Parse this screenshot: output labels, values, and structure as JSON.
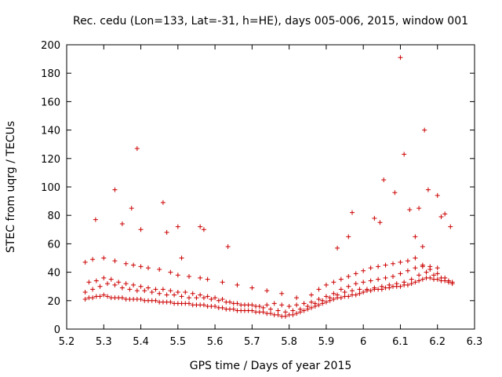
{
  "chart_data": {
    "type": "scatter",
    "title": "Rec. cedu (Lon=133, Lat=-31, h=HE), days 005-006, 2015, window 001",
    "xlabel": "GPS time / Days of year 2015",
    "ylabel": "STEC from uqrg / TECUs",
    "xlim": [
      5.2,
      6.3
    ],
    "ylim": [
      0,
      200
    ],
    "xticks": [
      5.2,
      5.3,
      5.4,
      5.5,
      5.6,
      5.7,
      5.8,
      5.9,
      6.0,
      6.1,
      6.2,
      6.3
    ],
    "xtick_labels": [
      "5.2",
      "5.3",
      "5.4",
      "5.5",
      "5.6",
      "5.7",
      "5.8",
      "5.9",
      "6",
      "6.1",
      "6.2",
      "6.3"
    ],
    "yticks": [
      0,
      20,
      40,
      60,
      80,
      100,
      120,
      140,
      160,
      180,
      200
    ],
    "ytick_labels": [
      "0",
      "20",
      "40",
      "60",
      "80",
      "100",
      "120",
      "140",
      "160",
      "180",
      "200"
    ],
    "marker": "+",
    "color": "#cc0000",
    "series": [
      {
        "name": "STEC",
        "x": [
          5.25,
          5.26,
          5.27,
          5.28,
          5.29,
          5.3,
          5.31,
          5.32,
          5.33,
          5.34,
          5.35,
          5.36,
          5.37,
          5.38,
          5.39,
          5.4,
          5.41,
          5.42,
          5.43,
          5.44,
          5.45,
          5.46,
          5.47,
          5.48,
          5.49,
          5.5,
          5.51,
          5.52,
          5.53,
          5.54,
          5.55,
          5.56,
          5.57,
          5.58,
          5.59,
          5.6,
          5.61,
          5.62,
          5.63,
          5.64,
          5.65,
          5.66,
          5.67,
          5.68,
          5.69,
          5.7,
          5.71,
          5.72,
          5.73,
          5.74,
          5.75,
          5.76,
          5.77,
          5.78,
          5.79,
          5.8,
          5.81,
          5.82,
          5.83,
          5.84,
          5.85,
          5.86,
          5.87,
          5.88,
          5.89,
          5.9,
          5.91,
          5.92,
          5.93,
          5.94,
          5.95,
          5.96,
          5.97,
          5.98,
          5.99,
          6.0,
          6.01,
          6.02,
          6.03,
          6.04,
          6.05,
          6.06,
          6.07,
          6.08,
          6.09,
          6.1,
          6.11,
          6.12,
          6.13,
          6.14,
          6.15,
          6.16,
          6.17,
          6.18,
          6.19,
          6.2,
          6.21,
          6.22,
          6.23,
          6.24,
          5.25,
          5.27,
          5.29,
          5.31,
          5.33,
          5.35,
          5.37,
          5.39,
          5.41,
          5.43,
          5.45,
          5.47,
          5.49,
          5.51,
          5.53,
          5.55,
          5.57,
          5.59,
          5.61,
          5.63,
          5.65,
          5.67,
          5.69,
          5.71,
          5.73,
          5.75,
          5.77,
          5.79,
          5.81,
          5.83,
          5.85,
          5.87,
          5.89,
          5.91,
          5.93,
          5.95,
          5.97,
          5.99,
          6.01,
          6.03,
          6.05,
          6.07,
          6.09,
          6.11,
          6.13,
          6.15,
          6.17,
          6.19,
          6.21,
          6.23,
          5.26,
          5.28,
          5.3,
          5.32,
          5.34,
          5.36,
          5.38,
          5.4,
          5.42,
          5.44,
          5.46,
          5.48,
          5.5,
          5.52,
          5.54,
          5.56,
          5.58,
          5.6,
          5.62,
          5.64,
          5.66,
          5.68,
          5.7,
          5.72,
          5.74,
          5.76,
          5.78,
          5.8,
          5.82,
          5.84,
          5.86,
          5.88,
          5.9,
          5.92,
          5.94,
          5.96,
          5.98,
          6.0,
          6.02,
          6.04,
          6.06,
          6.08,
          6.1,
          6.12,
          6.14,
          6.16,
          6.18,
          6.2,
          6.22,
          6.24,
          5.25,
          5.27,
          5.3,
          5.33,
          5.36,
          5.38,
          5.4,
          5.42,
          5.45,
          5.48,
          5.5,
          5.53,
          5.56,
          5.58,
          5.62,
          5.66,
          5.7,
          5.74,
          5.78,
          5.82,
          5.86,
          5.88,
          5.9,
          5.92,
          5.94,
          5.96,
          5.98,
          6.0,
          6.02,
          6.04,
          6.06,
          6.08,
          6.1,
          6.12,
          6.14,
          6.16,
          6.18,
          6.2,
          5.278,
          5.33,
          5.35,
          5.375,
          5.39,
          5.4,
          5.46,
          5.47,
          5.5,
          5.51,
          5.56,
          5.57,
          5.635,
          5.93,
          5.96,
          5.97,
          6.03,
          6.045,
          6.055,
          6.085,
          6.1,
          6.11,
          6.125,
          6.165,
          6.175,
          6.2,
          6.21,
          6.22,
          6.235,
          6.14,
          6.15,
          6.16
        ],
        "y": [
          21,
          22,
          22,
          23,
          23,
          24,
          23,
          22,
          22,
          22,
          22,
          21,
          21,
          21,
          21,
          21,
          20,
          20,
          20,
          20,
          19,
          19,
          19,
          19,
          18,
          18,
          18,
          18,
          18,
          17,
          17,
          17,
          17,
          16,
          16,
          16,
          15,
          15,
          14,
          14,
          14,
          13,
          13,
          13,
          13,
          13,
          12,
          12,
          12,
          11,
          11,
          10,
          10,
          9,
          9,
          10,
          10,
          11,
          12,
          13,
          14,
          15,
          16,
          17,
          18,
          19,
          20,
          21,
          22,
          22,
          23,
          23,
          24,
          24,
          25,
          26,
          27,
          27,
          28,
          28,
          28,
          29,
          29,
          30,
          30,
          30,
          31,
          31,
          32,
          33,
          34,
          35,
          36,
          36,
          35,
          35,
          34,
          34,
          33,
          33,
          26,
          28,
          30,
          32,
          31,
          29,
          28,
          27,
          27,
          26,
          25,
          24,
          24,
          23,
          22,
          22,
          22,
          21,
          20,
          19,
          18,
          17,
          17,
          16,
          15,
          14,
          13,
          12,
          13,
          14,
          16,
          18,
          20,
          22,
          24,
          26,
          27,
          28,
          28,
          29,
          30,
          31,
          32,
          33,
          35,
          38,
          40,
          38,
          36,
          34,
          33,
          34,
          36,
          35,
          33,
          32,
          31,
          30,
          29,
          28,
          28,
          27,
          26,
          26,
          25,
          24,
          23,
          22,
          21,
          19,
          18,
          17,
          17,
          16,
          17,
          18,
          17,
          16,
          17,
          18,
          19,
          21,
          23,
          25,
          28,
          30,
          32,
          33,
          34,
          35,
          36,
          37,
          39,
          41,
          43,
          44,
          42,
          39,
          36,
          32,
          47,
          49,
          50,
          48,
          46,
          45,
          44,
          43,
          42,
          40,
          38,
          37,
          36,
          35,
          33,
          31,
          29,
          27,
          25,
          22,
          24,
          28,
          31,
          33,
          35,
          37,
          39,
          41,
          43,
          44,
          45,
          46,
          47,
          48,
          50,
          45,
          44,
          43,
          77,
          98,
          74,
          85,
          127,
          70,
          89,
          68,
          72,
          50,
          72,
          70,
          58,
          57,
          65,
          82,
          78,
          75,
          105,
          96,
          191,
          123,
          84,
          140,
          98,
          94,
          79,
          81,
          72,
          65,
          85,
          58
        ]
      }
    ]
  }
}
